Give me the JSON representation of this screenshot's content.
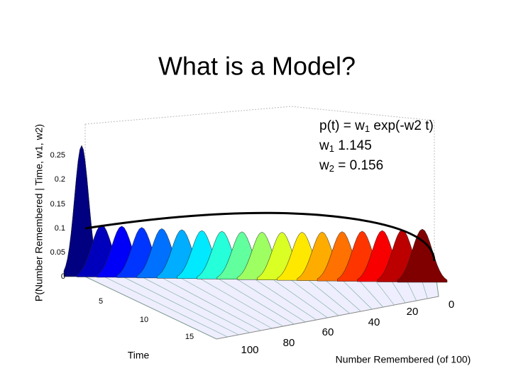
{
  "slide": {
    "title": "What is a Model?",
    "equation": {
      "line1": [
        "p(t) = w",
        "1",
        " exp(-w2 t)"
      ],
      "line2": [
        "w",
        "1",
        " 1.145"
      ],
      "line3": [
        "w",
        "2",
        " = 0.156"
      ]
    }
  },
  "figure": {
    "z_axis_label": "P(Number Remembered | Time, w1, w2)",
    "z_ticks": [
      "0.25",
      "0.2",
      "0.15",
      "0.1",
      "0.05",
      "0"
    ],
    "time_label": "Time",
    "time_ticks": [
      "5",
      "10",
      "15"
    ],
    "number_label": "Number Remembered (of 100)",
    "number_ticks": [
      "100",
      "80",
      "60",
      "40",
      "20",
      "0"
    ]
  }
}
